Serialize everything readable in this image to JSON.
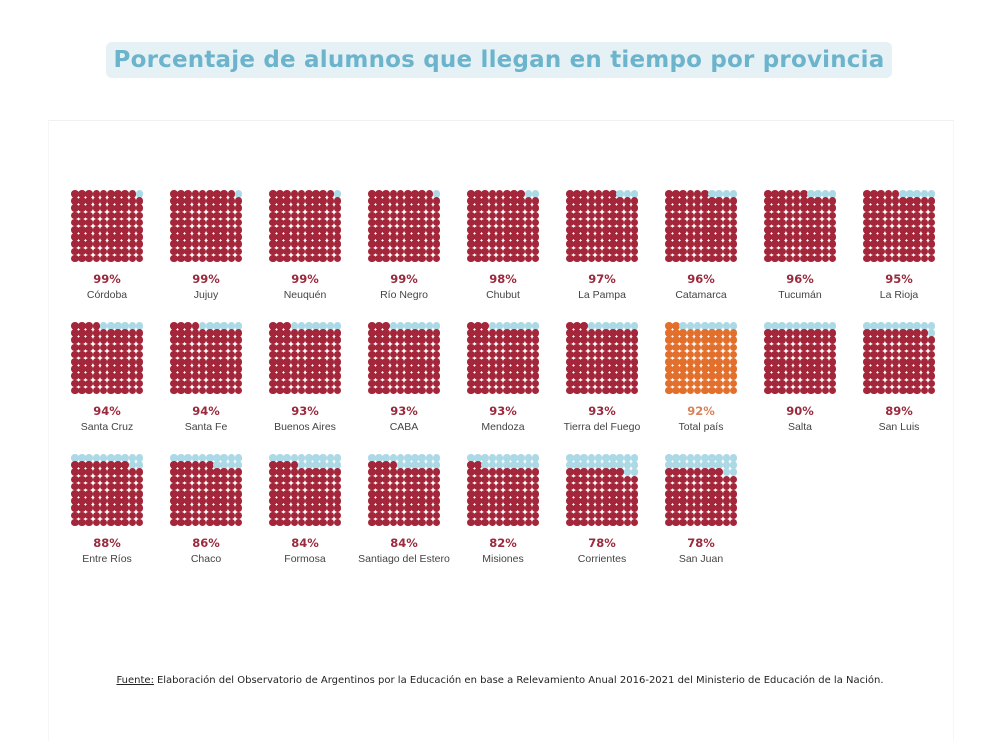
{
  "title": "Porcentaje de alumnos que llegan en tiempo por provincia",
  "source_label": "Fuente:",
  "source_text": "Elaboración del Observatorio de Argentinos por la Educación en base a Relevamiento Anual 2016-2021 del Ministerio de Educación de la Nación.",
  "chart_data": {
    "type": "waffle",
    "grid": "10x10",
    "colors": {
      "filled": "#a3263a",
      "total_filled": "#e2702c",
      "empty": "#abd9e6",
      "pct_label": "#9b2a3d",
      "total_pct_label": "#d9825a"
    },
    "categories": [
      "Córdoba",
      "Jujuy",
      "Neuquén",
      "Río Negro",
      "Chubut",
      "La Pampa",
      "Catamarca",
      "Tucumán",
      "La Rioja",
      "Santa Cruz",
      "Santa Fe",
      "Buenos Aires",
      "CABA",
      "Mendoza",
      "Tierra del Fuego",
      "Total país",
      "Salta",
      "San Luis",
      "Entre Ríos",
      "Chaco",
      "Formosa",
      "Santiago del Estero",
      "Misiones",
      "Corrientes",
      "San Juan"
    ],
    "values": [
      99,
      99,
      99,
      99,
      98,
      97,
      96,
      96,
      95,
      94,
      94,
      93,
      93,
      93,
      93,
      92,
      90,
      89,
      88,
      86,
      84,
      84,
      82,
      78,
      78
    ],
    "labels": [
      "99%",
      "99%",
      "99%",
      "99%",
      "98%",
      "97%",
      "96%",
      "96%",
      "95%",
      "94%",
      "94%",
      "93%",
      "93%",
      "93%",
      "93%",
      "92%",
      "90%",
      "89%",
      "88%",
      "86%",
      "84%",
      "84%",
      "82%",
      "78%",
      "78%"
    ],
    "highlight": "Total país"
  }
}
